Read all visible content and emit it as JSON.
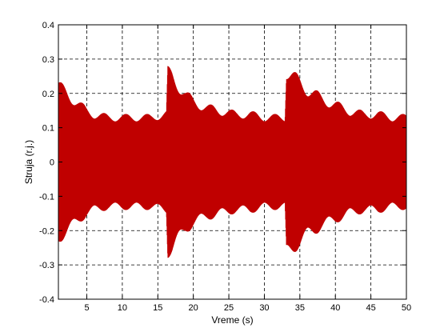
{
  "chart_data": {
    "type": "line",
    "title": "",
    "xlabel": "Vreme (s)",
    "ylabel": "Struja (r.j.)",
    "xlim": [
      1,
      50
    ],
    "ylim": [
      -0.4,
      0.4
    ],
    "x_ticks": [
      5,
      10,
      15,
      20,
      25,
      30,
      35,
      40,
      45,
      50
    ],
    "x_tick_labels": [
      "5",
      "10",
      "15",
      "20",
      "25",
      "30",
      "35",
      "40",
      "45",
      "50"
    ],
    "y_ticks": [
      -0.4,
      -0.3,
      -0.2,
      -0.1,
      0,
      0.1,
      0.2,
      0.3,
      0.4
    ],
    "y_tick_labels": [
      "-0.4",
      "-0.3",
      "-0.2",
      "-0.1",
      "0",
      "0.1",
      "0.2",
      "0.3",
      "0.4"
    ],
    "grid": true,
    "series": [
      {
        "color": "#c00000",
        "description_points": {
          "x": [
            1.0,
            2.0,
            3.0,
            4.0,
            5.0,
            6.0,
            8.0,
            10.0,
            12.0,
            14.0,
            16.2,
            16.4,
            17.0,
            18.0,
            19.0,
            20.0,
            22.0,
            24.0,
            26.0,
            28.0,
            30.0,
            32.9,
            33.1,
            34.0,
            35.0,
            36.0,
            38.0,
            40.0,
            42.0,
            44.0,
            46.0,
            48.0,
            50.0
          ],
          "envelope_upper": [
            0.24,
            0.22,
            0.2,
            0.18,
            0.16,
            0.15,
            0.14,
            0.14,
            0.14,
            0.14,
            0.15,
            0.28,
            0.27,
            0.24,
            0.21,
            0.19,
            0.17,
            0.16,
            0.15,
            0.15,
            0.14,
            0.14,
            0.29,
            0.27,
            0.25,
            0.23,
            0.2,
            0.18,
            0.16,
            0.15,
            0.15,
            0.14,
            0.14
          ],
          "envelope_lower": [
            -0.24,
            -0.22,
            -0.2,
            -0.18,
            -0.16,
            -0.15,
            -0.14,
            -0.14,
            -0.14,
            -0.14,
            -0.15,
            -0.28,
            -0.27,
            -0.24,
            -0.21,
            -0.19,
            -0.17,
            -0.16,
            -0.15,
            -0.15,
            -0.14,
            -0.14,
            -0.29,
            -0.27,
            -0.25,
            -0.23,
            -0.2,
            -0.18,
            -0.16,
            -0.15,
            -0.15,
            -0.14,
            -0.14
          ]
        }
      }
    ]
  }
}
